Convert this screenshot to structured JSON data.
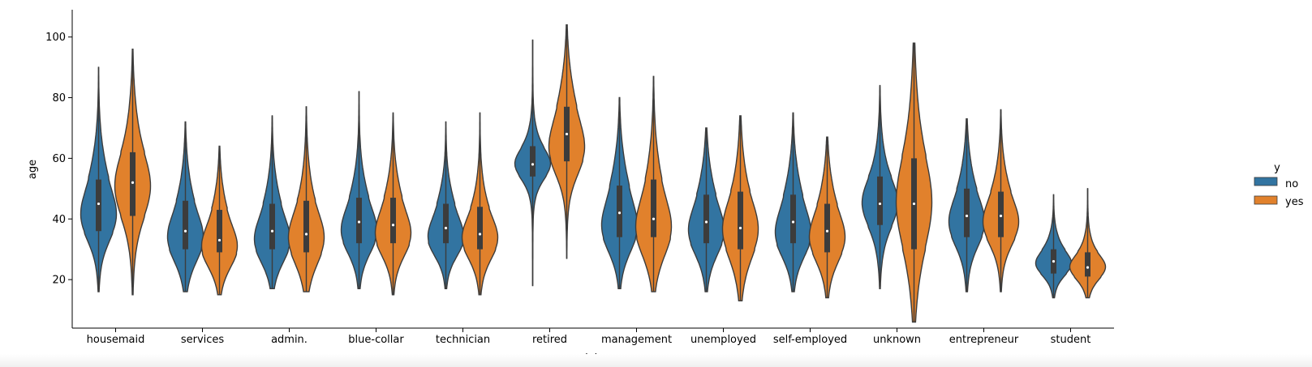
{
  "chart_data": {
    "type": "violin",
    "title": "",
    "xlabel": "job",
    "ylabel": "age",
    "ylim": [
      4,
      109
    ],
    "yticks": [
      20,
      40,
      60,
      80,
      100
    ],
    "categories": [
      "housemaid",
      "services",
      "admin.",
      "blue-collar",
      "technician",
      "retired",
      "management",
      "unemployed",
      "self-employed",
      "unknown",
      "entrepreneur",
      "student"
    ],
    "legend": {
      "title": "y",
      "placement": "right"
    },
    "series": [
      {
        "name": "no",
        "color": "#3274a1",
        "stats": [
          {
            "min": 16,
            "q1": 36,
            "median": 45,
            "q3": 53,
            "max": 90,
            "mode": 40
          },
          {
            "min": 16,
            "q1": 30,
            "median": 36,
            "q3": 46,
            "max": 72,
            "mode": 33
          },
          {
            "min": 17,
            "q1": 30,
            "median": 36,
            "q3": 45,
            "max": 74,
            "mode": 32
          },
          {
            "min": 17,
            "q1": 32,
            "median": 39,
            "q3": 47,
            "max": 82,
            "mode": 35
          },
          {
            "min": 17,
            "q1": 32,
            "median": 37,
            "q3": 45,
            "max": 72,
            "mode": 33
          },
          {
            "min": 18,
            "q1": 54,
            "median": 58,
            "q3": 64,
            "max": 99,
            "mode": 58
          },
          {
            "min": 17,
            "q1": 34,
            "median": 42,
            "q3": 51,
            "max": 80,
            "mode": 36
          },
          {
            "min": 16,
            "q1": 32,
            "median": 39,
            "q3": 48,
            "max": 70,
            "mode": 35
          },
          {
            "min": 16,
            "q1": 32,
            "median": 39,
            "q3": 48,
            "max": 75,
            "mode": 34
          },
          {
            "min": 17,
            "q1": 38,
            "median": 45,
            "q3": 54,
            "max": 84,
            "mode": 45
          },
          {
            "min": 16,
            "q1": 34,
            "median": 41,
            "q3": 50,
            "max": 73,
            "mode": 38
          },
          {
            "min": 14,
            "q1": 22,
            "median": 26,
            "q3": 30,
            "max": 48,
            "mode": 25
          }
        ]
      },
      {
        "name": "yes",
        "color": "#e1812c",
        "stats": [
          {
            "min": 15,
            "q1": 41,
            "median": 52,
            "q3": 62,
            "max": 96,
            "mode": 50
          },
          {
            "min": 15,
            "q1": 29,
            "median": 33,
            "q3": 43,
            "max": 64,
            "mode": 30
          },
          {
            "min": 16,
            "q1": 29,
            "median": 35,
            "q3": 46,
            "max": 77,
            "mode": 33
          },
          {
            "min": 15,
            "q1": 32,
            "median": 38,
            "q3": 47,
            "max": 75,
            "mode": 34
          },
          {
            "min": 15,
            "q1": 30,
            "median": 35,
            "q3": 44,
            "max": 75,
            "mode": 33
          },
          {
            "min": 27,
            "q1": 59,
            "median": 68,
            "q3": 77,
            "max": 104,
            "mode": 62
          },
          {
            "min": 16,
            "q1": 34,
            "median": 40,
            "q3": 53,
            "max": 87,
            "mode": 36
          },
          {
            "min": 13,
            "q1": 30,
            "median": 37,
            "q3": 49,
            "max": 74,
            "mode": 36
          },
          {
            "min": 14,
            "q1": 29,
            "median": 36,
            "q3": 45,
            "max": 67,
            "mode": 33
          },
          {
            "min": 6,
            "q1": 30,
            "median": 45,
            "q3": 60,
            "max": 98,
            "mode": 45
          },
          {
            "min": 16,
            "q1": 34,
            "median": 41,
            "q3": 49,
            "max": 76,
            "mode": 38
          },
          {
            "min": 14,
            "q1": 21,
            "median": 24,
            "q3": 29,
            "max": 50,
            "mode": 24
          }
        ]
      }
    ]
  }
}
